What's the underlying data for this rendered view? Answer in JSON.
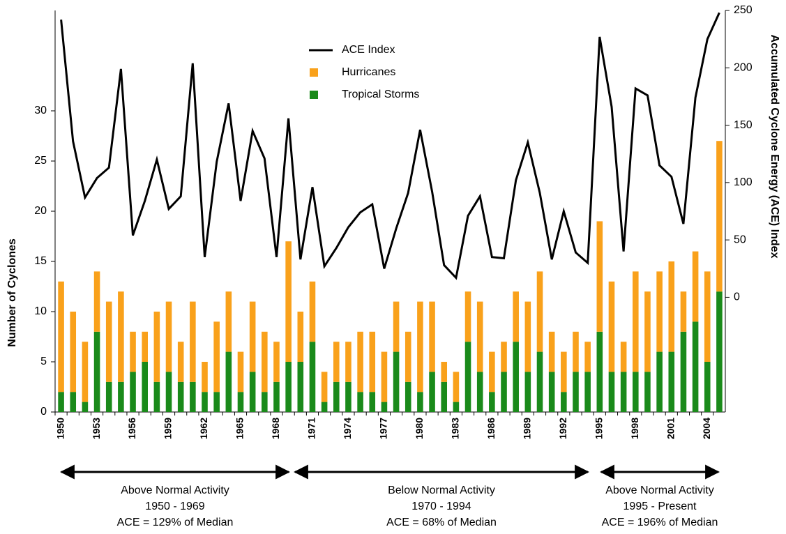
{
  "chart_data": {
    "type": "bar",
    "stacked": true,
    "y_label": "Number of Cyclones",
    "y2_label": "Accumulated Cyclone Energy (ACE) Index",
    "categories": [
      "1950",
      null,
      null,
      "1953",
      null,
      null,
      "1956",
      null,
      null,
      "1959",
      null,
      null,
      "1962",
      null,
      null,
      "1965",
      null,
      null,
      "1968",
      null,
      null,
      "1971",
      null,
      null,
      "1974",
      null,
      null,
      "1977",
      null,
      null,
      "1980",
      null,
      null,
      "1983",
      null,
      null,
      "1986",
      null,
      null,
      "1989",
      null,
      null,
      "1992",
      null,
      null,
      "1995",
      null,
      null,
      "1998",
      null,
      null,
      "2001",
      null,
      null,
      "2004",
      null
    ],
    "series": [
      {
        "name": "ACE Index",
        "type": "line",
        "axis": "y2",
        "color": "#000000",
        "values": [
          242,
          136,
          87,
          104,
          113,
          199,
          54,
          84,
          120,
          77,
          88,
          204,
          35,
          118,
          169,
          84,
          145,
          121,
          35,
          156,
          33,
          96,
          27,
          43,
          61,
          74,
          81,
          25,
          60,
          91,
          146,
          92,
          28,
          17,
          71,
          88,
          35,
          34,
          102,
          135,
          91,
          33,
          75,
          39,
          30,
          227,
          166,
          40,
          182,
          176,
          115,
          105,
          64,
          174,
          225,
          248
        ]
      },
      {
        "name": "Hurricanes",
        "type": "bar",
        "color": "#f9a11b",
        "values": [
          11,
          8,
          6,
          6,
          8,
          9,
          4,
          3,
          7,
          7,
          4,
          8,
          3,
          7,
          6,
          4,
          7,
          6,
          4,
          12,
          5,
          6,
          3,
          4,
          4,
          6,
          6,
          5,
          5,
          5,
          9,
          7,
          2,
          3,
          5,
          7,
          4,
          3,
          5,
          7,
          8,
          4,
          4,
          4,
          3,
          11,
          9,
          3,
          10,
          8,
          8,
          9,
          4,
          7,
          9,
          15
        ]
      },
      {
        "name": "Tropical Storms",
        "type": "bar",
        "color": "#1a8a1a",
        "values": [
          2,
          2,
          1,
          8,
          3,
          3,
          4,
          5,
          3,
          4,
          3,
          3,
          2,
          2,
          6,
          2,
          4,
          2,
          3,
          5,
          5,
          7,
          1,
          3,
          3,
          2,
          2,
          1,
          6,
          3,
          2,
          4,
          3,
          1,
          7,
          4,
          2,
          4,
          7,
          4,
          6,
          4,
          2,
          4,
          4,
          8,
          4,
          4,
          4,
          4,
          6,
          6,
          8,
          9,
          5,
          12
        ]
      }
    ],
    "ylim": [
      0,
      40
    ],
    "yticks": [
      0,
      5,
      10,
      15,
      20,
      25,
      30
    ],
    "y2lim": [
      -100,
      250
    ],
    "y2ticks": [
      0,
      50,
      100,
      150,
      200,
      250
    ],
    "annotations": [
      {
        "lines": [
          "Above Normal Activity",
          "1950 - 1969",
          "ACE = 129% of Median"
        ]
      },
      {
        "lines": [
          "Below Normal Activity",
          "1970 - 1994",
          "ACE = 68% of Median"
        ]
      },
      {
        "lines": [
          "Above Normal Activity",
          "1995 - Present",
          "ACE = 196% of Median"
        ]
      }
    ]
  }
}
